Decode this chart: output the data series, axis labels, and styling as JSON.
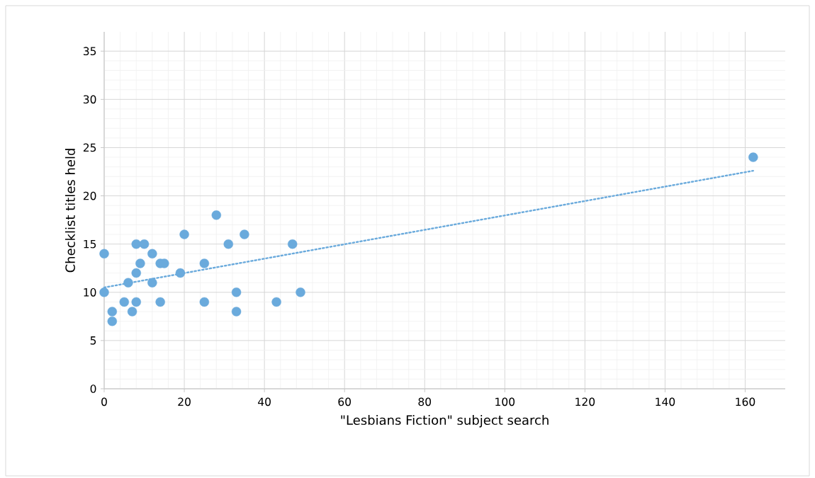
{
  "chart_data": {
    "type": "scatter",
    "xlabel": "\"Lesbians Fiction\" subject search",
    "ylabel": "Checklist titles held",
    "xlim": [
      0,
      170
    ],
    "xticks": [
      0,
      20,
      40,
      60,
      80,
      100,
      120,
      140,
      160
    ],
    "ylim": [
      0,
      37
    ],
    "yticks": [
      0,
      5,
      10,
      15,
      20,
      25,
      30,
      35
    ],
    "grid": true,
    "series": [
      {
        "color": "#6aaadc",
        "marker": "circle",
        "x": [
          0,
          0,
          2,
          2,
          5,
          6,
          7,
          8,
          8,
          8,
          9,
          10,
          12,
          12,
          14,
          15,
          14,
          19,
          20,
          25,
          25,
          28,
          31,
          33,
          33,
          35,
          43,
          47,
          49,
          162
        ],
        "values": [
          14,
          10,
          8,
          7,
          9,
          11,
          8,
          15,
          12,
          9,
          13,
          15,
          14,
          11,
          13,
          13,
          9,
          12,
          16,
          13,
          9,
          18,
          15,
          10,
          8,
          16,
          9,
          15,
          10,
          24
        ]
      },
      {
        "type": "line",
        "color": "#6aaadc",
        "marker": "none",
        "line_style": "dotted",
        "x": [
          0,
          162
        ],
        "values": [
          10.5,
          22.6
        ]
      }
    ]
  }
}
